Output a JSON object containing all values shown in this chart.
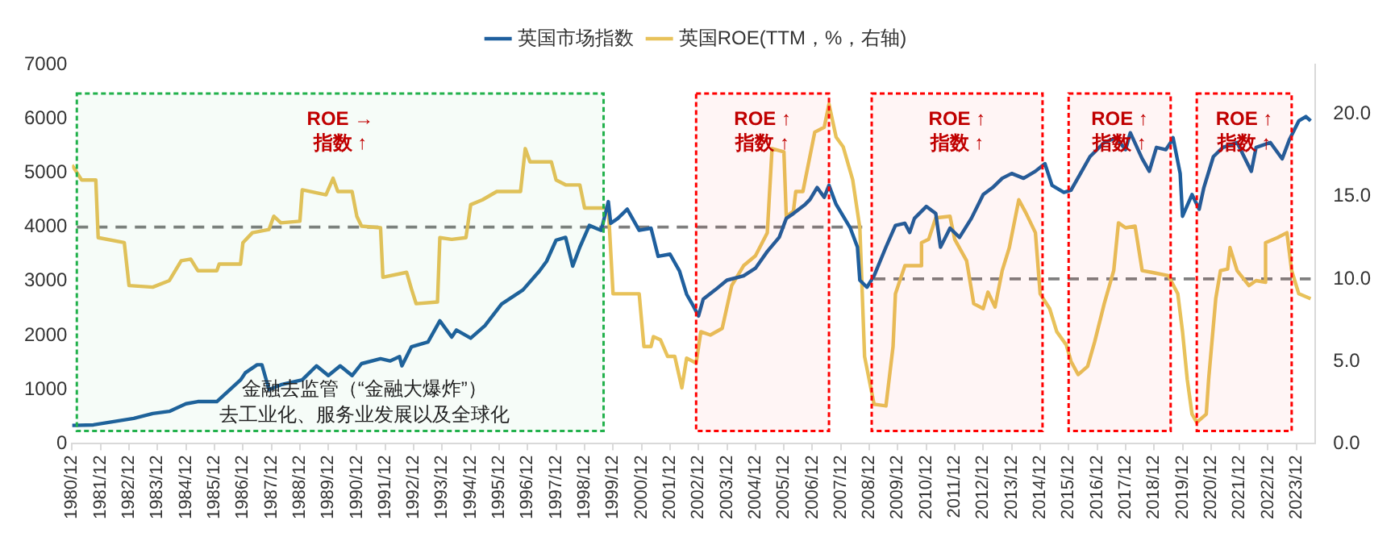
{
  "chart_data": {
    "type": "line",
    "xlim": [
      "1980-12",
      "2024-08"
    ],
    "xticks": [
      {
        "value": "1980-12",
        "label": "1980/12"
      },
      {
        "value": "1981-12",
        "label": "1981/12"
      },
      {
        "value": "1982-12",
        "label": "1982/12"
      },
      {
        "value": "1983-12",
        "label": "1983/12"
      },
      {
        "value": "1984-12",
        "label": "1984/12"
      },
      {
        "value": "1985-12",
        "label": "1985/12"
      },
      {
        "value": "1986-12",
        "label": "1986/12"
      },
      {
        "value": "1987-12",
        "label": "1987/12"
      },
      {
        "value": "1988-12",
        "label": "1988/12"
      },
      {
        "value": "1989-12",
        "label": "1989/12"
      },
      {
        "value": "1990-12",
        "label": "1990/12"
      },
      {
        "value": "1991-12",
        "label": "1991/12"
      },
      {
        "value": "1992-12",
        "label": "1992/12"
      },
      {
        "value": "1993-12",
        "label": "1993/12"
      },
      {
        "value": "1994-12",
        "label": "1994/12"
      },
      {
        "value": "1995-12",
        "label": "1995/12"
      },
      {
        "value": "1996-12",
        "label": "1996/12"
      },
      {
        "value": "1997-12",
        "label": "1997/12"
      },
      {
        "value": "1998-12",
        "label": "1998/12"
      },
      {
        "value": "1999-12",
        "label": "1999/12"
      },
      {
        "value": "2000-12",
        "label": "2000/12"
      },
      {
        "value": "2001-12",
        "label": "2001/12"
      },
      {
        "value": "2002-12",
        "label": "2002/12"
      },
      {
        "value": "2003-12",
        "label": "2003/12"
      },
      {
        "value": "2004-12",
        "label": "2004/12"
      },
      {
        "value": "2005-12",
        "label": "2005/12"
      },
      {
        "value": "2006-12",
        "label": "2006/12"
      },
      {
        "value": "2007-12",
        "label": "2007/12"
      },
      {
        "value": "2008-12",
        "label": "2008/12"
      },
      {
        "value": "2009-12",
        "label": "2009/12"
      },
      {
        "value": "2010-12",
        "label": "2010/12"
      },
      {
        "value": "2011-12",
        "label": "2011/12"
      },
      {
        "value": "2012-12",
        "label": "2012/12"
      },
      {
        "value": "2013-12",
        "label": "2013/12"
      },
      {
        "value": "2014-12",
        "label": "2014/12"
      },
      {
        "value": "2015-12",
        "label": "2015/12"
      },
      {
        "value": "2016-12",
        "label": "2016/12"
      },
      {
        "value": "2017-12",
        "label": "2017/12"
      },
      {
        "value": "2018-12",
        "label": "2018/12"
      },
      {
        "value": "2019-12",
        "label": "2019/12"
      },
      {
        "value": "2020-12",
        "label": "2020/12"
      },
      {
        "value": "2021-12",
        "label": "2021/12"
      },
      {
        "value": "2022-12",
        "label": "2022/12"
      },
      {
        "value": "2023-12",
        "label": "2023/12"
      }
    ],
    "ylim": [
      0,
      7000
    ],
    "yticks": [
      0,
      1000,
      2000,
      3000,
      4000,
      5000,
      6000,
      7000
    ],
    "y2lim": [
      0,
      23
    ],
    "y2ticks": [
      {
        "value": 0,
        "label": "0.0"
      },
      {
        "value": 5,
        "label": "5.0"
      },
      {
        "value": 10,
        "label": "10.0"
      },
      {
        "value": 15,
        "label": "15.0"
      },
      {
        "value": 20,
        "label": "20.0"
      }
    ],
    "legend": "top",
    "series": [
      {
        "name": "英国市场指数",
        "color": "#1f5f9e",
        "axis": "y",
        "x": [
          "1980-12",
          "1981-09",
          "1983-02",
          "1983-10",
          "1984-05",
          "1984-12",
          "1985-05",
          "1986-01",
          "1986-11",
          "1987-01",
          "1987-06",
          "1987-08",
          "1987-11",
          "1988-04",
          "1989-01",
          "1989-07",
          "1989-12",
          "1990-05",
          "1990-10",
          "1991-02",
          "1991-10",
          "1992-02",
          "1992-06",
          "1992-07",
          "1992-11",
          "1993-06",
          "1993-11",
          "1994-04",
          "1994-06",
          "1994-12",
          "1995-06",
          "1996-01",
          "1996-10",
          "1997-05",
          "1997-08",
          "1997-12",
          "1998-04",
          "1998-06",
          "1998-07",
          "1998-10",
          "1999-02",
          "1999-07",
          "1999-10",
          "1999-11",
          "2000-02",
          "2000-06",
          "2000-11",
          "2001-04",
          "2001-07",
          "2001-12",
          "2002-04",
          "2002-07",
          "2002-10",
          "2002-12",
          "2003-02",
          "2003-07",
          "2003-12",
          "2004-07",
          "2004-12",
          "2005-05",
          "2005-10",
          "2006-01",
          "2006-04",
          "2006-09",
          "2006-11",
          "2007-02",
          "2007-05",
          "2007-07",
          "2007-10",
          "2008-04",
          "2008-07",
          "2008-08",
          "2008-11",
          "2009-02",
          "2009-07",
          "2009-11",
          "2010-03",
          "2010-05",
          "2010-07",
          "2010-12",
          "2011-04",
          "2011-06",
          "2011-10",
          "2012-02",
          "2012-07",
          "2012-12",
          "2013-04",
          "2013-08",
          "2013-12",
          "2014-05",
          "2014-10",
          "2015-02",
          "2015-05",
          "2015-10",
          "2016-01",
          "2016-05",
          "2016-09",
          "2017-03",
          "2017-08",
          "2017-12",
          "2018-02",
          "2018-07",
          "2018-10",
          "2019-01",
          "2019-05",
          "2019-07",
          "2019-08",
          "2019-11",
          "2019-12",
          "2020-04",
          "2020-07",
          "2020-09",
          "2021-01",
          "2021-05",
          "2021-11",
          "2022-05",
          "2022-07",
          "2023-01",
          "2023-06",
          "2023-09",
          "2024-01",
          "2024-04",
          "2024-06"
        ],
        "values": [
          340,
          350,
          470,
          560,
          600,
          740,
          780,
          780,
          1180,
          1310,
          1460,
          1460,
          1000,
          1090,
          1180,
          1440,
          1260,
          1440,
          1260,
          1480,
          1570,
          1530,
          1610,
          1440,
          1790,
          1880,
          2270,
          1970,
          2100,
          1950,
          2180,
          2580,
          2840,
          3190,
          3370,
          3760,
          3810,
          3460,
          3280,
          3630,
          4030,
          3940,
          4470,
          4070,
          4160,
          4330,
          3940,
          3980,
          3460,
          3500,
          3190,
          2760,
          2530,
          2360,
          2670,
          2840,
          3020,
          3100,
          3240,
          3550,
          3810,
          4160,
          4250,
          4420,
          4510,
          4730,
          4550,
          4770,
          4420,
          3980,
          3630,
          3020,
          2890,
          3100,
          3630,
          4030,
          4070,
          3900,
          4160,
          4380,
          4250,
          3630,
          3980,
          3810,
          4160,
          4600,
          4730,
          4900,
          4990,
          4900,
          5030,
          5170,
          4770,
          4640,
          4680,
          4990,
          5300,
          5560,
          5650,
          5430,
          5740,
          5260,
          5030,
          5470,
          5430,
          5560,
          5650,
          4990,
          4200,
          4600,
          4330,
          4730,
          5300,
          5470,
          5560,
          5030,
          5470,
          5560,
          5260,
          5610,
          5960,
          6040,
          5960
        ]
      },
      {
        "name": "英国ROE(TTM，%，右轴)",
        "color": "#e8c25a",
        "axis": "y2",
        "x": [
          "1980-12",
          "1981-04",
          "1981-10",
          "1981-11",
          "1982-10",
          "1982-12",
          "1983-10",
          "1984-05",
          "1984-10",
          "1985-02",
          "1985-05",
          "1986-01",
          "1986-02",
          "1986-11",
          "1986-12",
          "1987-04",
          "1987-11",
          "1988-01",
          "1988-04",
          "1988-12",
          "1989-01",
          "1989-11",
          "1990-02",
          "1990-04",
          "1990-10",
          "1990-12",
          "1991-02",
          "1991-10",
          "1991-11",
          "1992-09",
          "1992-11",
          "1993-01",
          "1993-10",
          "1993-11",
          "1994-04",
          "1994-10",
          "1994-12",
          "1995-05",
          "1995-11",
          "1996-09",
          "1996-11",
          "1997-01",
          "1997-10",
          "1997-12",
          "1998-04",
          "1998-10",
          "1998-12",
          "1999-10",
          "1999-12",
          "2000-11",
          "2001-01",
          "2001-04",
          "2001-05",
          "2001-08",
          "2001-11",
          "2002-02",
          "2002-05",
          "2002-07",
          "2002-11",
          "2003-01",
          "2003-05",
          "2003-10",
          "2004-02",
          "2004-07",
          "2004-12",
          "2005-05",
          "2005-07",
          "2005-12",
          "2006-01",
          "2006-04",
          "2006-05",
          "2006-08",
          "2007-01",
          "2007-05",
          "2007-07",
          "2007-10",
          "2008-01",
          "2008-05",
          "2008-08",
          "2008-10",
          "2009-02",
          "2009-07",
          "2009-10",
          "2009-11",
          "2010-03",
          "2010-10",
          "2010-10",
          "2011-01",
          "2011-04",
          "2011-10",
          "2011-12",
          "2012-05",
          "2012-08",
          "2012-12",
          "2013-02",
          "2013-05",
          "2013-08",
          "2013-11",
          "2014-03",
          "2014-06",
          "2014-10",
          "2014-12",
          "2015-04",
          "2015-07",
          "2015-11",
          "2016-01",
          "2016-04",
          "2016-08",
          "2016-11",
          "2017-03",
          "2017-07",
          "2017-09",
          "2017-12",
          "2018-04",
          "2018-07",
          "2018-11",
          "2019-06",
          "2019-10",
          "2019-12",
          "2020-02",
          "2020-04",
          "2020-06",
          "2020-10",
          "2020-11",
          "2021-02",
          "2021-04",
          "2021-07",
          "2021-08",
          "2021-11",
          "2022-04",
          "2022-07",
          "2022-11",
          "2022-11",
          "2023-04",
          "2023-08",
          "2023-10",
          "2024-01",
          "2024-06"
        ],
        "values": [
          16.9,
          16.0,
          16.0,
          12.5,
          12.2,
          9.6,
          9.5,
          9.9,
          11.1,
          11.2,
          10.5,
          10.5,
          10.9,
          10.9,
          12.2,
          12.8,
          13.0,
          13.8,
          13.4,
          13.5,
          15.4,
          15.1,
          16.1,
          15.3,
          15.3,
          13.8,
          13.2,
          13.1,
          10.1,
          10.4,
          9.4,
          8.5,
          8.6,
          12.5,
          12.4,
          12.5,
          14.5,
          14.8,
          15.3,
          15.3,
          17.9,
          17.1,
          17.1,
          16.0,
          15.7,
          15.7,
          14.3,
          14.3,
          9.1,
          9.1,
          5.9,
          5.9,
          6.5,
          6.3,
          5.3,
          5.3,
          3.4,
          5.2,
          4.9,
          6.8,
          6.6,
          7.0,
          9.6,
          10.8,
          11.4,
          12.8,
          17.9,
          17.7,
          13.8,
          14.1,
          15.3,
          15.3,
          18.9,
          19.2,
          20.6,
          18.6,
          18.0,
          16.0,
          13.1,
          5.3,
          2.4,
          2.3,
          5.9,
          9.1,
          10.8,
          10.8,
          12.2,
          12.4,
          13.7,
          13.8,
          12.4,
          11.1,
          8.5,
          8.2,
          9.2,
          8.3,
          10.5,
          11.9,
          14.8,
          14.0,
          12.8,
          9.1,
          8.2,
          6.8,
          6.0,
          5.0,
          4.2,
          4.7,
          6.2,
          8.5,
          10.5,
          13.4,
          13.1,
          13.2,
          10.5,
          10.4,
          10.2,
          9.1,
          6.8,
          3.9,
          1.8,
          1.3,
          1.8,
          3.9,
          8.8,
          10.5,
          10.6,
          11.9,
          10.5,
          9.6,
          9.9,
          9.8,
          12.2,
          12.5,
          12.8,
          10.5,
          9.1,
          8.8
        ]
      },
      {
        "color": "#7f7f7f",
        "axis": "y",
        "line_style": "dashed",
        "x": [
          "1981-02",
          "2008-10"
        ],
        "values": [
          4000,
          4000
        ]
      },
      {
        "color": "#7f7f7f",
        "axis": "y2",
        "line_style": "dashed",
        "x": [
          "2009-02",
          "2024-06"
        ],
        "values": [
          10,
          10
        ]
      }
    ],
    "bands": [
      {
        "axis": "x",
        "from": "1981-02",
        "to": "1999-08",
        "label": "ROE →\n指数 ↑",
        "color": "#22b14c"
      },
      {
        "axis": "x",
        "from": "2002-11",
        "to": "2007-07",
        "label": "ROE ↑\n指数 ↑",
        "color": "#ff0000"
      },
      {
        "axis": "x",
        "from": "2009-01",
        "to": "2015-01",
        "label": "ROE ↑\n指数 ↑",
        "color": "#ff0000"
      },
      {
        "axis": "x",
        "from": "2015-12",
        "to": "2019-07",
        "label": "ROE ↑\n指数 ↑",
        "color": "#ff0000"
      },
      {
        "axis": "x",
        "from": "2020-06",
        "to": "2023-10",
        "label": "ROE ↑\n指数 ↑",
        "color": "#ff0000"
      }
    ],
    "annotations": [
      "金融去监管（“金融大爆炸”）",
      "去工业化、服务业发展以及全球化"
    ]
  }
}
